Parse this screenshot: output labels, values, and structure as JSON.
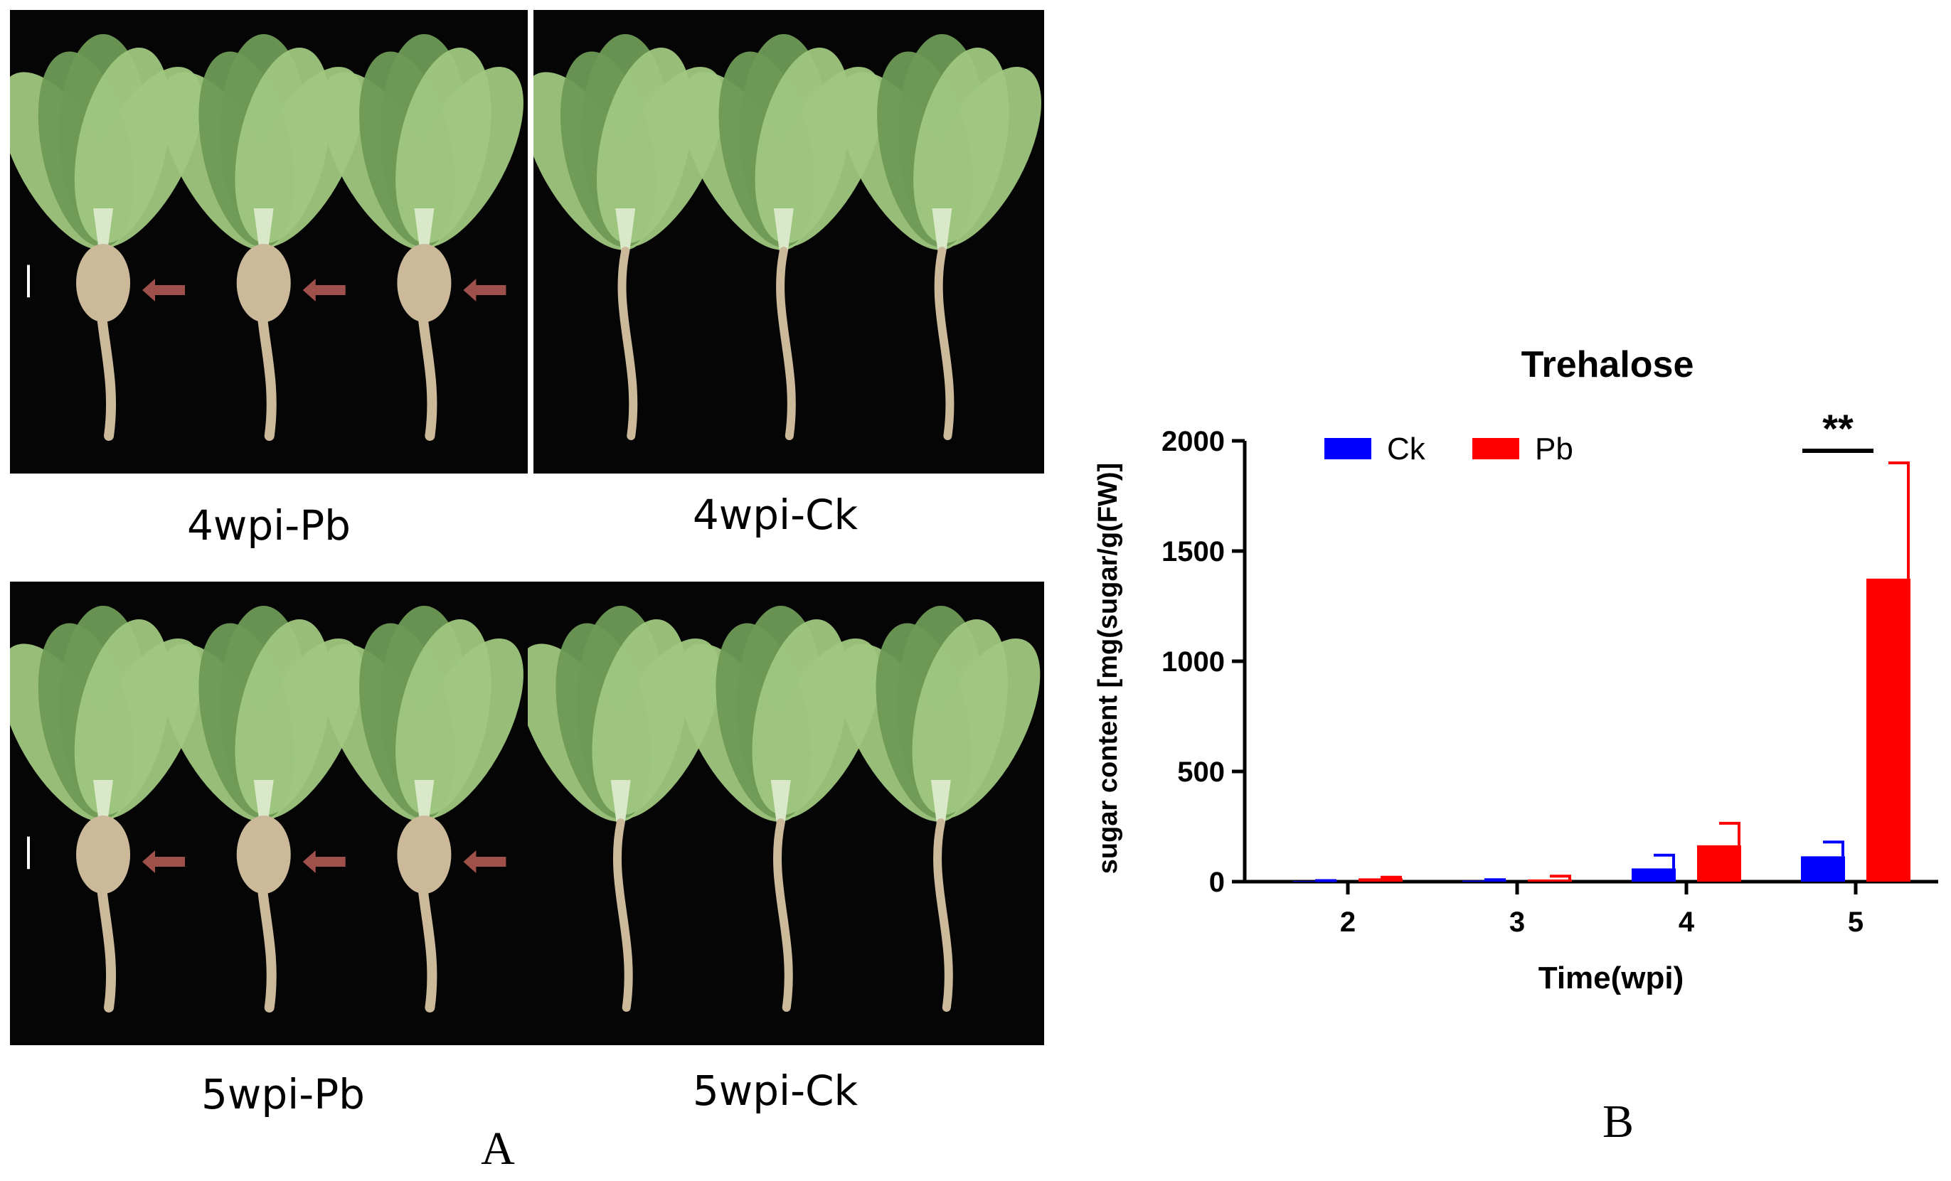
{
  "figure": {
    "panel_a_label": "A",
    "panel_b_label": "B",
    "photos": [
      {
        "caption": "4wpi-Pb",
        "arrows": 3,
        "scale_bar": true
      },
      {
        "caption": "4wpi-Ck",
        "arrows": 0,
        "scale_bar": false
      },
      {
        "caption": "5wpi-Pb",
        "arrows": 3,
        "scale_bar": true
      },
      {
        "caption": "5wpi-Ck",
        "arrows": 0,
        "scale_bar": false
      }
    ],
    "colors": {
      "photo_background": "#050505",
      "leaf": "#9fc77f",
      "leaf_dark": "#6e9a55",
      "root": "#cbb99a",
      "arrow": "#a0504a"
    }
  },
  "chart_data": {
    "type": "bar",
    "title": "Trehalose",
    "xlabel": "Time(wpi)",
    "ylabel": "sugar content [mg(sugar/g(FW)]",
    "categories": [
      "2",
      "3",
      "4",
      "5"
    ],
    "series": [
      {
        "name": "Ck",
        "color": "#0000ff",
        "values": [
          3,
          5,
          60,
          115
        ],
        "errors": [
          2,
          4,
          60,
          65
        ]
      },
      {
        "name": "Pb",
        "color": "#ff0000",
        "values": [
          15,
          10,
          165,
          1375
        ],
        "errors": [
          5,
          15,
          100,
          525
        ]
      }
    ],
    "ylim": [
      0,
      2000
    ],
    "yticks": [
      0,
      500,
      1000,
      1500,
      2000
    ],
    "legend_position": "top-left",
    "grid": false,
    "significance": [
      {
        "category": "5",
        "label": "**"
      }
    ]
  }
}
